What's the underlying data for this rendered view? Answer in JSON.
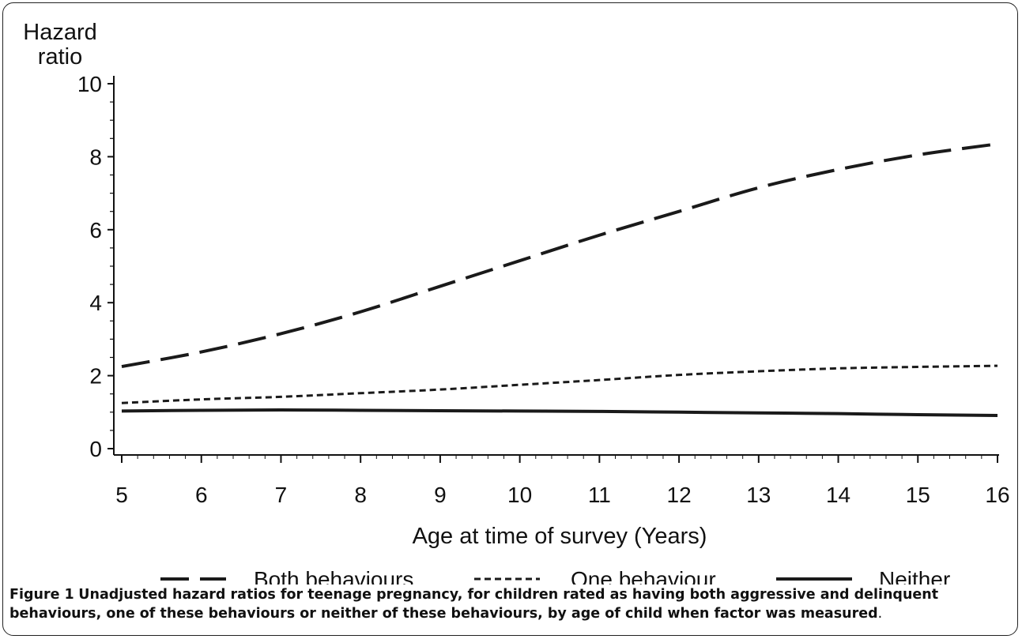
{
  "chart_data": {
    "type": "line",
    "ylabel": "Hazard ratio",
    "ylabel_lines": [
      "Hazard",
      "ratio"
    ],
    "xlabel": "Age at time of survey (Years)",
    "xlim": [
      5,
      16
    ],
    "ylim": [
      0,
      10
    ],
    "x_ticks": [
      5,
      6,
      7,
      8,
      9,
      10,
      11,
      12,
      13,
      14,
      15,
      16
    ],
    "y_ticks": [
      0,
      2,
      4,
      6,
      8,
      10
    ],
    "grid": false,
    "legend_position": "bottom",
    "series": [
      {
        "name": "Both behaviours",
        "style": "long-dash",
        "color": "#1a1a1a",
        "x": [
          5,
          6,
          7,
          8,
          9,
          10,
          11,
          12,
          13,
          14,
          15,
          16
        ],
        "y": [
          2.25,
          2.65,
          3.15,
          3.75,
          4.45,
          5.15,
          5.85,
          6.5,
          7.15,
          7.65,
          8.05,
          8.35
        ]
      },
      {
        "name": "One behaviour",
        "style": "short-dash",
        "color": "#1a1a1a",
        "x": [
          5,
          6,
          7,
          8,
          9,
          10,
          11,
          12,
          13,
          14,
          15,
          16
        ],
        "y": [
          1.25,
          1.35,
          1.42,
          1.52,
          1.62,
          1.75,
          1.88,
          2.02,
          2.12,
          2.2,
          2.24,
          2.27
        ]
      },
      {
        "name": "Neither",
        "style": "solid",
        "color": "#1a1a1a",
        "x": [
          5,
          6,
          7,
          8,
          9,
          10,
          11,
          12,
          13,
          14,
          15,
          16
        ],
        "y": [
          1.03,
          1.05,
          1.06,
          1.05,
          1.04,
          1.03,
          1.02,
          1.0,
          0.98,
          0.96,
          0.93,
          0.91
        ]
      }
    ]
  },
  "caption": {
    "label": "Figure 1",
    "text": "Unadjusted hazard ratios for teenage pregnancy, for children rated as having both aggressive and delinquent behaviours, one of these behaviours or neither of these behaviours, by age of child when factor was measured",
    "end": "."
  }
}
